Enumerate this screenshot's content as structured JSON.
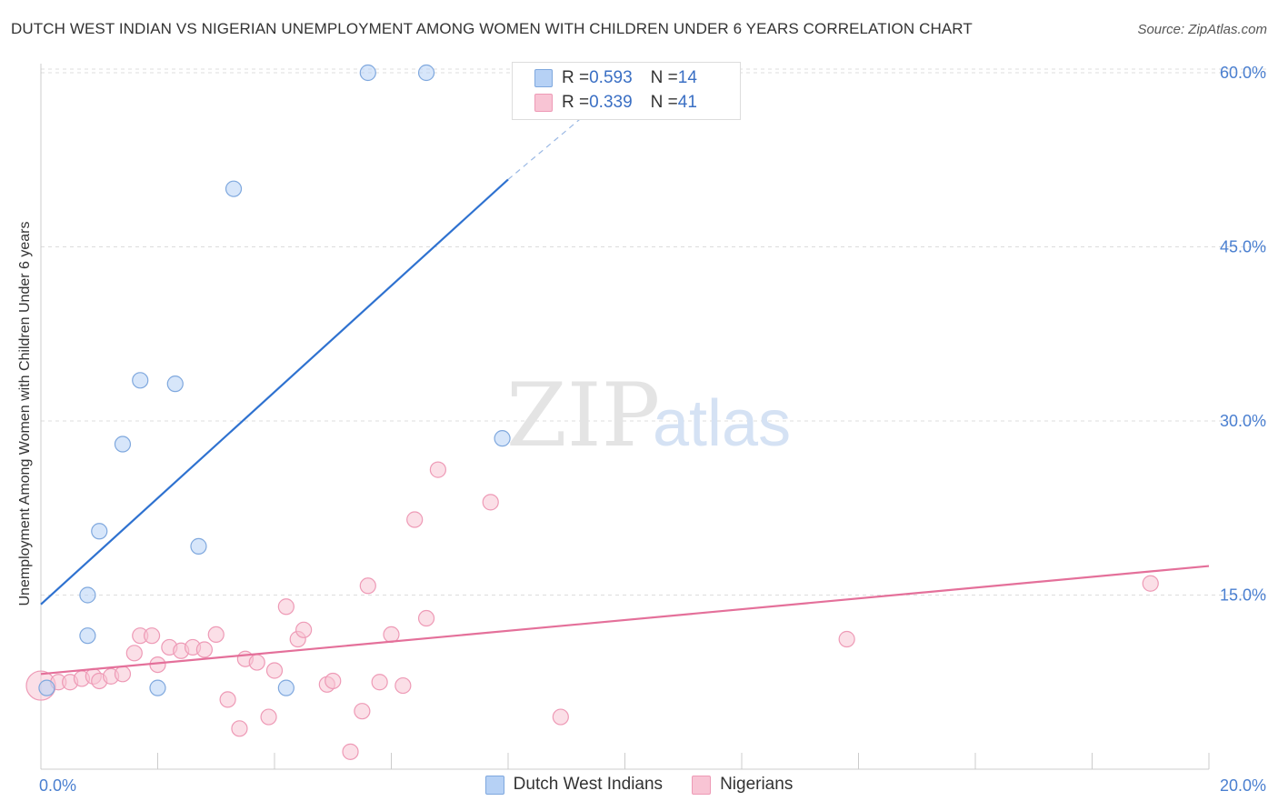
{
  "title": "DUTCH WEST INDIAN VS NIGERIAN UNEMPLOYMENT AMONG WOMEN WITH CHILDREN UNDER 6 YEARS CORRELATION CHART",
  "source": "Source: ZipAtlas.com",
  "watermark": {
    "part1": "ZIP",
    "part2": "atlas"
  },
  "legend": {
    "rows": [
      {
        "r_label": "R = ",
        "r_value": "0.593",
        "n_label": "N = ",
        "n_value": "14"
      },
      {
        "r_label": "R = ",
        "r_value": "0.339",
        "n_label": "N = ",
        "n_value": "41"
      }
    ]
  },
  "bottom_legend": [
    "Dutch West Indians",
    "Nigerians"
  ],
  "colors": {
    "blue_fill": "#b6d1f5",
    "blue_stroke": "#7fa8de",
    "blue_line": "#2f72d0",
    "pink_fill": "#f8c4d4",
    "pink_stroke": "#ee9ab6",
    "pink_line": "#e4709a",
    "grid": "#dddddd",
    "tick_text": "#4a7fd0"
  },
  "chart_data": {
    "type": "scatter",
    "title": "DUTCH WEST INDIAN VS NIGERIAN UNEMPLOYMENT AMONG WOMEN WITH CHILDREN UNDER 6 YEARS CORRELATION CHART",
    "xlabel": "",
    "ylabel": "Unemployment Among Women with Children Under 6 years",
    "xlim": [
      0,
      20
    ],
    "ylim": [
      0,
      60
    ],
    "x_ticks": [
      0,
      20
    ],
    "x_tick_labels": [
      "0.0%",
      "20.0%"
    ],
    "y_ticks": [
      15,
      30,
      45,
      60
    ],
    "y_tick_labels": [
      "15.0%",
      "30.0%",
      "45.0%",
      "60.0%"
    ],
    "series": [
      {
        "name": "Dutch West Indians",
        "color": "blue",
        "R": 0.593,
        "N": 14,
        "points": [
          [
            0.1,
            7.0
          ],
          [
            0.8,
            11.5
          ],
          [
            0.8,
            15.0
          ],
          [
            1.0,
            20.5
          ],
          [
            1.4,
            28.0
          ],
          [
            1.7,
            33.5
          ],
          [
            2.0,
            7.0
          ],
          [
            2.3,
            33.2
          ],
          [
            2.7,
            19.2
          ],
          [
            3.3,
            50.0
          ],
          [
            4.2,
            7.0
          ],
          [
            5.6,
            60.0
          ],
          [
            6.6,
            60.0
          ],
          [
            7.9,
            28.5
          ]
        ],
        "trend": {
          "x0": 0,
          "y0": 14.2,
          "x1": 8.0,
          "y1": 50.8,
          "dashed_to_x": 9.3,
          "dashed_to_y": 56.3
        }
      },
      {
        "name": "Nigerians",
        "color": "pink",
        "R": 0.339,
        "N": 41,
        "points": [
          [
            0.0,
            7.2
          ],
          [
            0.3,
            7.5
          ],
          [
            0.5,
            7.5
          ],
          [
            0.7,
            7.8
          ],
          [
            0.9,
            8.0
          ],
          [
            1.0,
            7.6
          ],
          [
            1.2,
            8.0
          ],
          [
            1.4,
            8.2
          ],
          [
            1.6,
            10.0
          ],
          [
            1.7,
            11.5
          ],
          [
            1.9,
            11.5
          ],
          [
            2.0,
            9.0
          ],
          [
            2.2,
            10.5
          ],
          [
            2.4,
            10.2
          ],
          [
            2.6,
            10.5
          ],
          [
            2.8,
            10.3
          ],
          [
            3.0,
            11.6
          ],
          [
            3.2,
            6.0
          ],
          [
            3.4,
            3.5
          ],
          [
            3.5,
            9.5
          ],
          [
            3.7,
            9.2
          ],
          [
            3.9,
            4.5
          ],
          [
            4.0,
            8.5
          ],
          [
            4.2,
            14.0
          ],
          [
            4.4,
            11.2
          ],
          [
            4.5,
            12.0
          ],
          [
            4.9,
            7.3
          ],
          [
            5.0,
            7.6
          ],
          [
            5.3,
            1.5
          ],
          [
            5.5,
            5.0
          ],
          [
            5.6,
            15.8
          ],
          [
            5.8,
            7.5
          ],
          [
            6.0,
            11.6
          ],
          [
            6.2,
            7.2
          ],
          [
            6.4,
            21.5
          ],
          [
            6.6,
            13.0
          ],
          [
            6.8,
            25.8
          ],
          [
            7.7,
            23.0
          ],
          [
            8.9,
            4.5
          ],
          [
            13.8,
            11.2
          ],
          [
            19.0,
            16.0
          ]
        ],
        "trend": {
          "x0": 0,
          "y0": 8.2,
          "x1": 20,
          "y1": 17.5
        }
      }
    ]
  }
}
